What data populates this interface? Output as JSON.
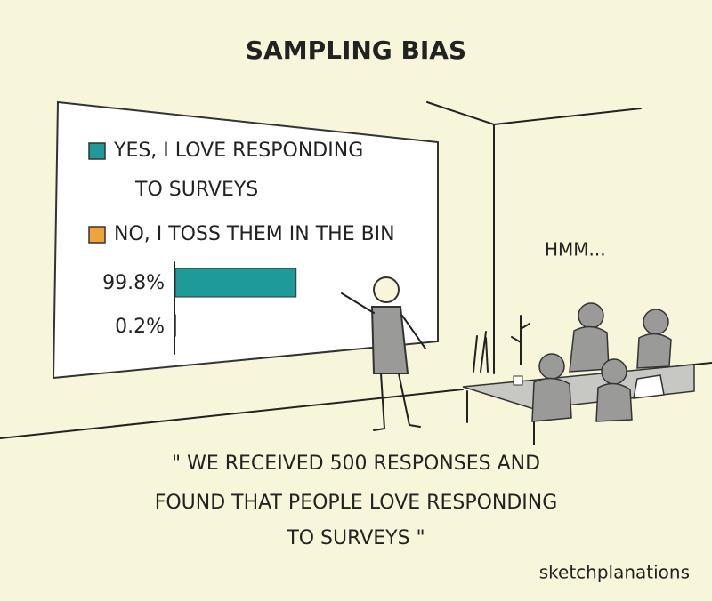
{
  "title": "SAMPLING BIAS",
  "whiteboard": {
    "type": "bar",
    "series": [
      {
        "lines": [
          "YES, I LOVE RESPONDING",
          "TO SURVEYS"
        ],
        "color": "#1f9a9a",
        "value": 99.8,
        "value_label": "99.8%"
      },
      {
        "lines": [
          "NO, I TOSS THEM IN THE BIN"
        ],
        "color": "#eea43a",
        "value": 0.2,
        "value_label": "0.2%"
      }
    ]
  },
  "speech": "HMM...",
  "caption": [
    "\" WE RECEIVED 500 RESPONSES AND",
    "FOUND THAT PEOPLE LOVE RESPONDING",
    "TO SURVEYS \""
  ],
  "credit": "sketchplanations"
}
